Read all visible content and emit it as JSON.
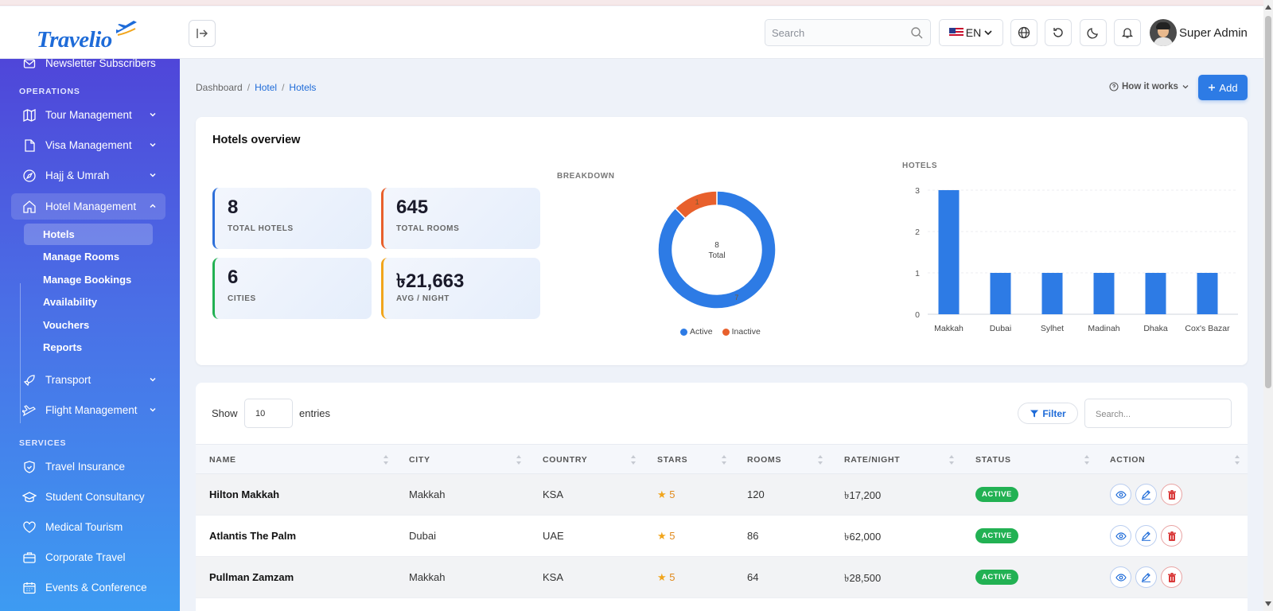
{
  "app": {
    "name": "Travelio"
  },
  "header": {
    "search_placeholder": "Search",
    "language": "EN",
    "user_name": "Super Admin"
  },
  "sidebar": {
    "top_item": "Newsletter Subscribers",
    "operations_label": "OPERATIONS",
    "services_label": "SERVICES",
    "operations": [
      {
        "label": "Tour Management",
        "icon": "map-icon"
      },
      {
        "label": "Visa Management",
        "icon": "document-icon"
      },
      {
        "label": "Hajj & Umrah",
        "icon": "compass-icon"
      },
      {
        "label": "Hotel Management",
        "icon": "home-icon",
        "expanded": true
      }
    ],
    "hotel_sub": [
      "Hotels",
      "Manage Rooms",
      "Manage Bookings",
      "Availability",
      "Vouchers",
      "Reports"
    ],
    "operations_more": [
      {
        "label": "Transport",
        "icon": "rocket-icon"
      },
      {
        "label": "Flight Management",
        "icon": "plane-icon"
      }
    ],
    "services": [
      {
        "label": "Travel Insurance",
        "icon": "shield-icon"
      },
      {
        "label": "Student Consultancy",
        "icon": "graduation-cap-icon"
      },
      {
        "label": "Medical Tourism",
        "icon": "heart-icon"
      },
      {
        "label": "Corporate Travel",
        "icon": "briefcase-icon"
      },
      {
        "label": "Events & Conference",
        "icon": "calendar-icon"
      }
    ]
  },
  "breadcrumb": {
    "items": [
      "Dashboard",
      "Hotel",
      "Hotels"
    ],
    "separator": "/"
  },
  "page_actions": {
    "how_it_works": "How it works",
    "add": "Add"
  },
  "overview": {
    "title": "Hotels overview",
    "stats": [
      {
        "value": "8",
        "label": "TOTAL HOTELS",
        "accent": "#2d6fd9"
      },
      {
        "value": "645",
        "label": "TOTAL ROOMS",
        "accent": "#e8602c"
      },
      {
        "value": "6",
        "label": "CITIES",
        "accent": "#22b153"
      },
      {
        "value": "৳21,663",
        "label": "AVG / NIGHT",
        "accent": "#f1a51c"
      }
    ],
    "breakdown_label": "BREAKDOWN",
    "hotels_label": "HOTELS"
  },
  "chart_data": [
    {
      "type": "pie",
      "title": "BREAKDOWN",
      "center_value": "8",
      "center_label": "Total",
      "categories": [
        "Active",
        "Inactive"
      ],
      "values": [
        7,
        1
      ],
      "colors": [
        "#2d7be5",
        "#e8602c"
      ],
      "legend_position": "bottom"
    },
    {
      "type": "bar",
      "title": "HOTELS",
      "categories": [
        "Makkah",
        "Dubai",
        "Sylhet",
        "Madinah",
        "Dhaka",
        "Cox's Bazar"
      ],
      "values": [
        3,
        1,
        1,
        1,
        1,
        1
      ],
      "ylim": [
        0,
        3
      ],
      "yticks": [
        "0",
        "1",
        "2",
        "3"
      ],
      "grid": true,
      "color": "#2d7be5"
    }
  ],
  "table": {
    "show_label": "Show",
    "entries_value": "10",
    "entries_label": "entries",
    "filter_label": "Filter",
    "search_placeholder": "Search...",
    "columns": [
      "NAME",
      "CITY",
      "COUNTRY",
      "STARS",
      "ROOMS",
      "RATE/NIGHT",
      "STATUS",
      "ACTION"
    ],
    "rows": [
      {
        "name": "Hilton Makkah",
        "city": "Makkah",
        "country": "KSA",
        "stars": "5",
        "rooms": "120",
        "rate": "৳17,200",
        "status": "ACTIVE"
      },
      {
        "name": "Atlantis The Palm",
        "city": "Dubai",
        "country": "UAE",
        "stars": "5",
        "rooms": "86",
        "rate": "৳62,000",
        "status": "ACTIVE"
      },
      {
        "name": "Pullman Zamzam",
        "city": "Makkah",
        "country": "KSA",
        "stars": "5",
        "rooms": "64",
        "rate": "৳28,500",
        "status": "ACTIVE"
      }
    ]
  }
}
